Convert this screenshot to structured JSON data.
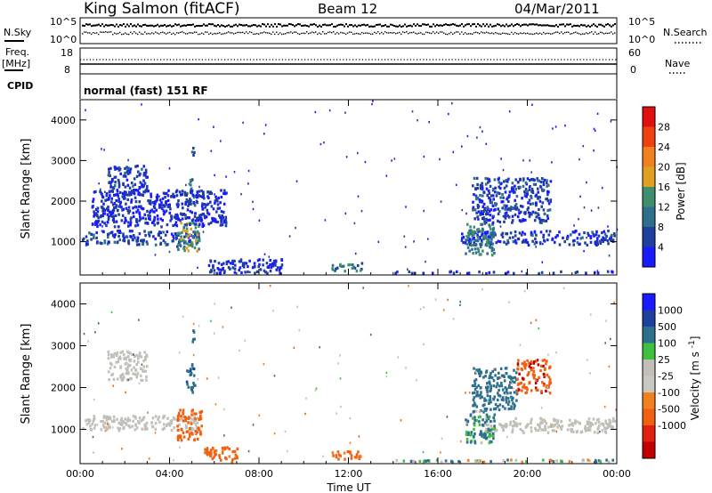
{
  "header": {
    "station": "King Salmon (fitACF)",
    "beam": "Beam 12",
    "date": "04/Mar/2011"
  },
  "panels": {
    "nsky_label": "N.Sky",
    "nsky_tick_top": "10^5",
    "nsky_tick_bottom": "10^0",
    "nsearch_label": "N.Search",
    "nsearch_tick_top": "10^5",
    "nsearch_tick_bottom": "10^0",
    "freq_label": "Freq.",
    "freq_unit": "[MHz]",
    "freq_tick_top": "18",
    "freq_tick_bottom": "8",
    "nave_label": "Nave",
    "nave_tick_top": "60",
    "nave_tick_bottom": "0",
    "cpid_label": "CPID",
    "cpid_value": "normal (fast) 151 RF"
  },
  "colors": {
    "power_scale": [
      "#1a1aff",
      "#1f3f9f",
      "#2e6f8e",
      "#3f8f6f",
      "#e0a020",
      "#f08020",
      "#f04010",
      "#e01010"
    ],
    "velocity_scale": [
      "#1a1aff",
      "#1f3f9f",
      "#2e6f8e",
      "#40c040",
      "#c0c0b8",
      "#c8c8c0",
      "#f08020",
      "#f06010",
      "#e02010",
      "#c00000"
    ],
    "ground_scatter": "#c0c0b8"
  },
  "chart_data": [
    {
      "type": "heatmap",
      "name": "power",
      "xlabel": "",
      "ylabel": "Slant Range [km]",
      "xlim": [
        0,
        24
      ],
      "ylim": [
        180,
        4500
      ],
      "yticks": [
        "1000",
        "2000",
        "3000",
        "4000"
      ],
      "colorbar_label": "Power [dB]",
      "colorbar_ticks": [
        "4",
        "8",
        "12",
        "16",
        "20",
        "24",
        "28"
      ],
      "colorbar_range": [
        0,
        32
      ],
      "regions": [
        {
          "t0": 0.0,
          "t1": 5.3,
          "r0": 950,
          "r1": 1300,
          "level": 6
        },
        {
          "t0": 4.3,
          "t1": 5.3,
          "r0": 800,
          "r1": 1500,
          "level": 14
        },
        {
          "t0": 1.2,
          "t1": 3.0,
          "r0": 2200,
          "r1": 2900,
          "level": 5
        },
        {
          "t0": 4.7,
          "t1": 5.1,
          "r0": 1900,
          "r1": 2600,
          "level": 10
        },
        {
          "t0": 4.9,
          "t1": 5.1,
          "r0": 3100,
          "r1": 3400,
          "level": 6
        },
        {
          "t0": 0.5,
          "t1": 6.5,
          "r0": 1400,
          "r1": 2300,
          "level": 4
        },
        {
          "t0": 5.5,
          "t1": 9.0,
          "r0": 200,
          "r1": 600,
          "level": 4
        },
        {
          "t0": 11.2,
          "t1": 12.6,
          "r0": 300,
          "r1": 500,
          "level": 10
        },
        {
          "t0": 14.0,
          "t1": 24.0,
          "r0": 200,
          "r1": 300,
          "level": 4
        },
        {
          "t0": 17.0,
          "t1": 24.0,
          "r0": 950,
          "r1": 1300,
          "level": 5
        },
        {
          "t0": 17.2,
          "t1": 18.5,
          "r0": 700,
          "r1": 1500,
          "level": 12
        },
        {
          "t0": 17.5,
          "t1": 21.0,
          "r0": 1500,
          "r1": 2600,
          "level": 6
        }
      ]
    },
    {
      "type": "heatmap",
      "name": "velocity",
      "xlabel": "Time UT",
      "ylabel": "Slant Range [km]",
      "xlim": [
        0,
        24
      ],
      "ylim": [
        180,
        4500
      ],
      "xticks": [
        "00:00",
        "04:00",
        "08:00",
        "12:00",
        "16:00",
        "20:00",
        "00:00"
      ],
      "yticks": [
        "1000",
        "2000",
        "3000",
        "4000"
      ],
      "colorbar_label": "Velocity [m s^-1]",
      "colorbar_ticks": [
        "1000",
        "500",
        "100",
        "25",
        "-25",
        "-100",
        "-500",
        "-1000"
      ],
      "regions": [
        {
          "t0": 0.0,
          "t1": 5.3,
          "r0": 1000,
          "r1": 1350,
          "kind": "ground"
        },
        {
          "t0": 4.3,
          "t1": 5.4,
          "r0": 750,
          "r1": 1500,
          "velocity": -300
        },
        {
          "t0": 1.2,
          "t1": 3.0,
          "r0": 2200,
          "r1": 2900,
          "kind": "ground"
        },
        {
          "t0": 4.7,
          "t1": 5.1,
          "r0": 1900,
          "r1": 2600,
          "velocity": 400
        },
        {
          "t0": 4.9,
          "t1": 5.1,
          "r0": 3100,
          "r1": 3400,
          "velocity": 200
        },
        {
          "t0": 5.5,
          "t1": 7.0,
          "r0": 200,
          "r1": 600,
          "velocity": -200
        },
        {
          "t0": 11.2,
          "t1": 12.6,
          "r0": 300,
          "r1": 500,
          "velocity": -200
        },
        {
          "t0": 14.0,
          "t1": 24.0,
          "r0": 200,
          "r1": 300,
          "velocity": 80
        },
        {
          "t0": 18.0,
          "t1": 24.0,
          "r0": 950,
          "r1": 1300,
          "kind": "ground"
        },
        {
          "t0": 17.2,
          "t1": 18.5,
          "r0": 700,
          "r1": 1500,
          "velocity": 150
        },
        {
          "t0": 17.5,
          "t1": 19.5,
          "r0": 1500,
          "r1": 2500,
          "velocity": 300
        },
        {
          "t0": 19.5,
          "t1": 21.0,
          "r0": 1900,
          "r1": 2700,
          "velocity": -400
        }
      ]
    }
  ]
}
